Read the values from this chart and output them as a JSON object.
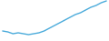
{
  "x": [
    0,
    1,
    2,
    3,
    4,
    5,
    6,
    7,
    8,
    9,
    10,
    11,
    12,
    13,
    14,
    15,
    16,
    17,
    18,
    19,
    20
  ],
  "y": [
    34,
    35,
    37,
    36,
    37,
    38,
    37,
    36,
    34,
    31,
    28,
    25,
    22,
    19,
    16,
    14,
    11,
    8,
    6,
    3,
    1
  ],
  "line_color": "#4aabdb",
  "line_width": 1.0,
  "background_color": "#ffffff"
}
